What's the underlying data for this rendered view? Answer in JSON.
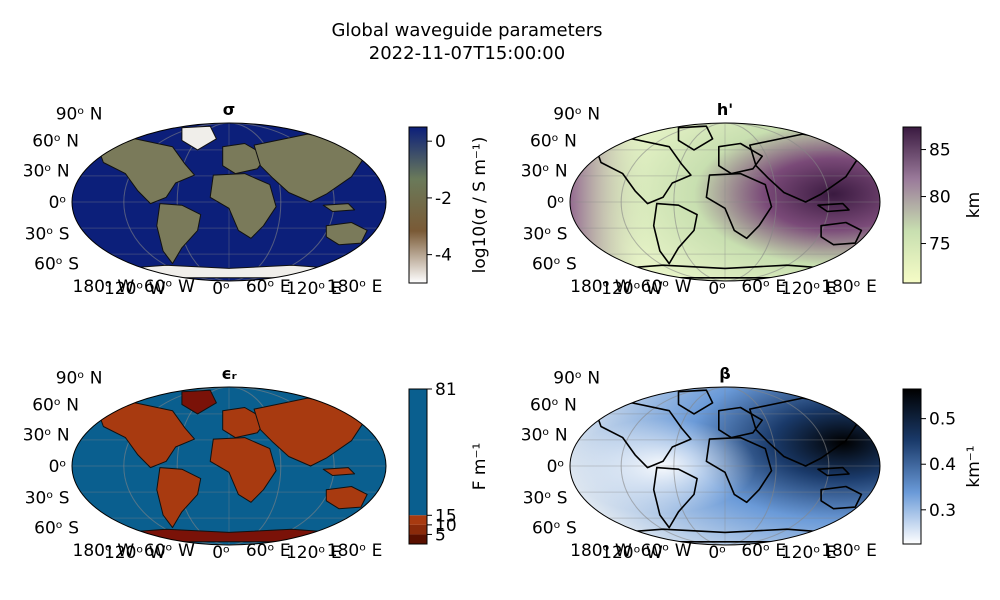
{
  "figure": {
    "title": "Global waveguide parameters",
    "subtitle": "2022-11-07T15:00:00"
  },
  "chart_data": [
    {
      "type": "heatmap",
      "title": "σ",
      "projection": "Robinson world map",
      "colorbar": {
        "label": "log10(σ / S m⁻¹)",
        "ticks": [
          "0",
          "-2",
          "-4"
        ],
        "tick_values": [
          0,
          -2,
          -4
        ],
        "range": [
          -5,
          0.5
        ],
        "colormap": "white-brown-green-navy",
        "colors": [
          "#ffffff",
          "#7a5a36",
          "#6a7a5a",
          "#0c1f7a"
        ]
      },
      "lat_labels": [
        "90ᵒ N",
        "60ᵒ N",
        "30ᵒ N",
        "0ᵒ",
        "30ᵒ S",
        "60ᵒ S"
      ],
      "lon_labels": [
        "180ᵒ W",
        "120ᵒ W",
        "60ᵒ W",
        "0ᵒ",
        "60ᵒ E",
        "120ᵒ E",
        "180ᵒ E"
      ],
      "ocean_color": "#0c1f7a",
      "land_color": "#7a7a5a",
      "ice_color": "#f0eeea"
    },
    {
      "type": "heatmap",
      "title": "h'",
      "projection": "Robinson world map",
      "colorbar": {
        "label": "km",
        "ticks": [
          "85",
          "80",
          "75"
        ],
        "tick_values": [
          85,
          80,
          75
        ],
        "range": [
          70.8,
          87.4
        ],
        "colormap": "light-yellow-green-purple",
        "colors": [
          "#f6fcc6",
          "#c8dfb0",
          "#9a7a9a",
          "#3a1a40"
        ]
      },
      "lat_labels": [
        "90ᵒ N",
        "60ᵒ N",
        "30ᵒ N",
        "0ᵒ",
        "30ᵒ S",
        "60ᵒ S"
      ],
      "lon_labels": [
        "180ᵒ W",
        "120ᵒ W",
        "60ᵒ W",
        "0ᵒ",
        "60ᵒ E",
        "120ᵒ E",
        "180ᵒ E"
      ]
    },
    {
      "type": "heatmap",
      "title": "ϵᵣ",
      "projection": "Robinson world map",
      "colorbar": {
        "label": "F m⁻¹",
        "ticks": [
          "81",
          "15",
          "10",
          "5"
        ],
        "tick_values": [
          81,
          15,
          10,
          5
        ],
        "range": [
          0,
          81
        ],
        "colormap": "categorical",
        "colors": [
          "#0a5f8f",
          "#a83a10",
          "#8a2a0a",
          "#5a1000"
        ]
      },
      "lat_labels": [
        "90ᵒ N",
        "60ᵒ N",
        "30ᵒ N",
        "0ᵒ",
        "30ᵒ S",
        "60ᵒ S"
      ],
      "lon_labels": [
        "180ᵒ W",
        "120ᵒ W",
        "60ᵒ W",
        "0ᵒ",
        "60ᵒ E",
        "120ᵒ E",
        "180ᵒ E"
      ],
      "ocean_color": "#0a5f8f",
      "land_color": "#a83a10",
      "ice_color": "#7a1208"
    },
    {
      "type": "heatmap",
      "title": "β",
      "projection": "Robinson world map",
      "colorbar": {
        "label": "km⁻¹",
        "ticks": [
          "0.5",
          "0.4",
          "0.3"
        ],
        "tick_values": [
          0.5,
          0.4,
          0.3
        ],
        "range": [
          0.225,
          0.565
        ],
        "colormap": "white-blue-black",
        "colors": [
          "#ffffff",
          "#6a9ad8",
          "#1a3a6a",
          "#000000"
        ]
      },
      "lat_labels": [
        "90ᵒ N",
        "60ᵒ N",
        "30ᵒ N",
        "0ᵒ",
        "30ᵒ S",
        "60ᵒ S"
      ],
      "lon_labels": [
        "180ᵒ W",
        "120ᵒ W",
        "60ᵒ W",
        "0ᵒ",
        "60ᵒ E",
        "120ᵒ E",
        "180ᵒ E"
      ]
    }
  ]
}
